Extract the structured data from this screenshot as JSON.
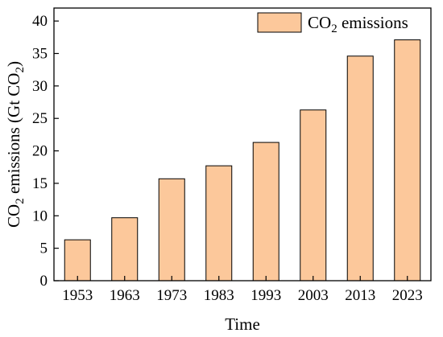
{
  "chart_data": {
    "type": "bar",
    "categories": [
      "1953",
      "1963",
      "1973",
      "1983",
      "1993",
      "2003",
      "2013",
      "2023"
    ],
    "series": [
      {
        "name": "CO2 emissions",
        "name_display": {
          "prefix": "CO",
          "sub": "2",
          "suffix": " emissions"
        },
        "values": [
          6.3,
          9.7,
          15.7,
          17.7,
          21.3,
          26.3,
          34.6,
          37.1
        ]
      }
    ],
    "xlabel": "Time",
    "ylabel": "CO2 emissions (Gt CO2)",
    "ylabel_display": {
      "prefix": "CO",
      "sub1": "2",
      "middle": " emissions (Gt CO",
      "sub2": "2",
      "suffix": ")"
    },
    "ylim": [
      0,
      42
    ],
    "yticks": [
      "0",
      "5",
      "10",
      "15",
      "20",
      "25",
      "30",
      "35",
      "40"
    ],
    "grid": false,
    "legend_position": "top-right",
    "colors": {
      "bar_fill": "#fcc89b",
      "bar_stroke": "#000000",
      "axis": "#000000"
    }
  }
}
